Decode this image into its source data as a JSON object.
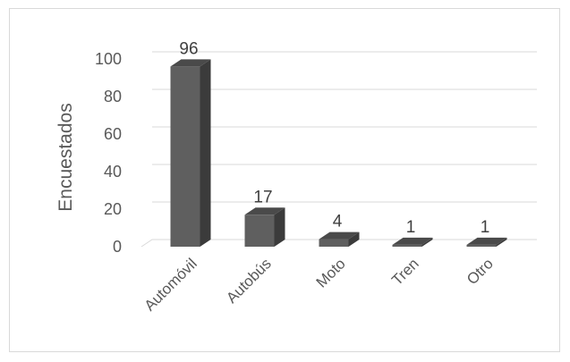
{
  "chart_data": {
    "type": "bar",
    "categories": [
      "Automóvil",
      "Autobús",
      "Moto",
      "Tren",
      "Otro"
    ],
    "values": [
      96,
      17,
      4,
      1,
      1
    ],
    "title": "",
    "xlabel": "",
    "ylabel": "Encuestados",
    "ylim": [
      0,
      100
    ],
    "yticks": [
      0,
      20,
      40,
      60,
      80,
      100
    ],
    "grid": true,
    "legend": "none",
    "bar_style": "3d",
    "colors": {
      "front": "#5f5f5f",
      "side": "#3b3b3b",
      "top": "#4a4a4a",
      "grid": "#d9d9d9",
      "text": "#595959"
    }
  }
}
